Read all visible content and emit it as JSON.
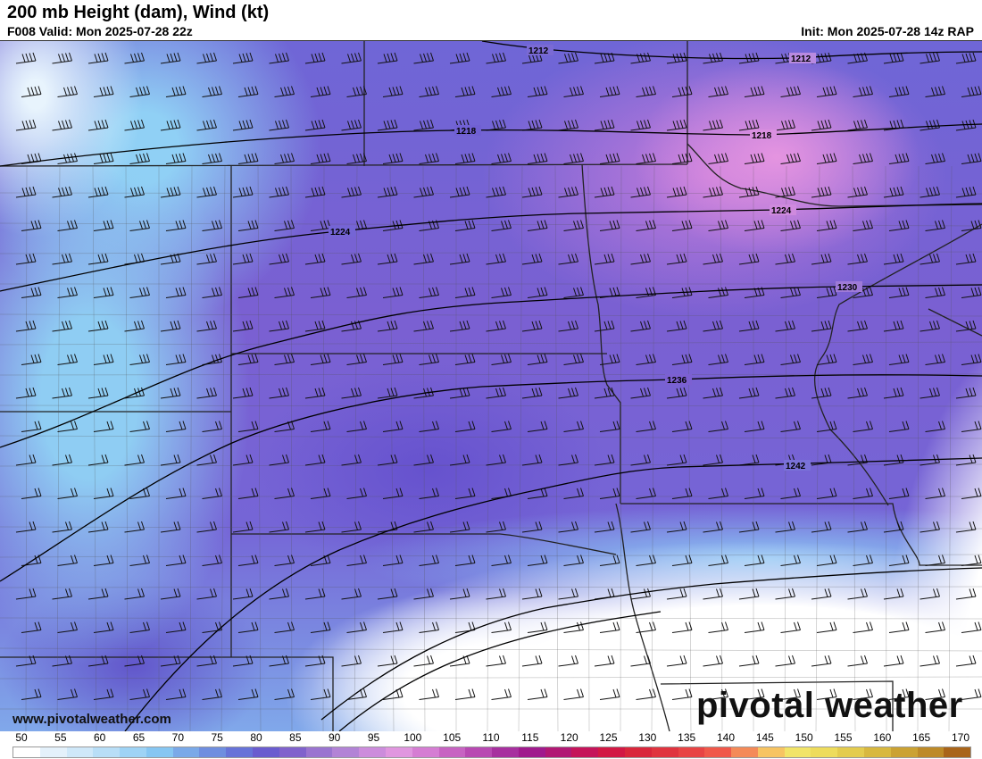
{
  "header": {
    "title": "200 mb Height (dam), Wind (kt)",
    "valid": "F008 Valid: Mon 2025-07-28 22z",
    "init": "Init: Mon 2025-07-28 14z RAP"
  },
  "map": {
    "contours": [
      {
        "label": "1212"
      },
      {
        "label": "1218"
      },
      {
        "label": "1224"
      },
      {
        "label": "1230"
      },
      {
        "label": "1236"
      },
      {
        "label": "1242"
      }
    ]
  },
  "footer": {
    "website": "www.pivotalweather.com",
    "logo": "pivotal weather"
  },
  "colorbar": {
    "units": "kt",
    "ticks": [
      "50",
      "55",
      "60",
      "65",
      "70",
      "75",
      "80",
      "85",
      "90",
      "95",
      "100",
      "105",
      "110",
      "115",
      "120",
      "125",
      "130",
      "135",
      "140",
      "145",
      "150",
      "155",
      "160",
      "165",
      "170"
    ],
    "colors": [
      "#ffffff",
      "#e4f1fb",
      "#cfe8f9",
      "#b8def7",
      "#9ed3f5",
      "#86c6f2",
      "#7aa9e8",
      "#6f8edf",
      "#6773d8",
      "#6a5ccf",
      "#8062cc",
      "#9a74d0",
      "#b283d6",
      "#cc8cdc",
      "#e096df",
      "#d57dd3",
      "#c763c2",
      "#b849b2",
      "#a7309f",
      "#a01a8d",
      "#b11874",
      "#c5145a",
      "#d21844",
      "#d9263b",
      "#e0343f",
      "#e84444",
      "#f0584a",
      "#f48a58",
      "#f7c462",
      "#f2e468",
      "#eedc5c",
      "#e4cc4e",
      "#d8b83f",
      "#cba233",
      "#bd8a28",
      "#a9651a"
    ]
  }
}
